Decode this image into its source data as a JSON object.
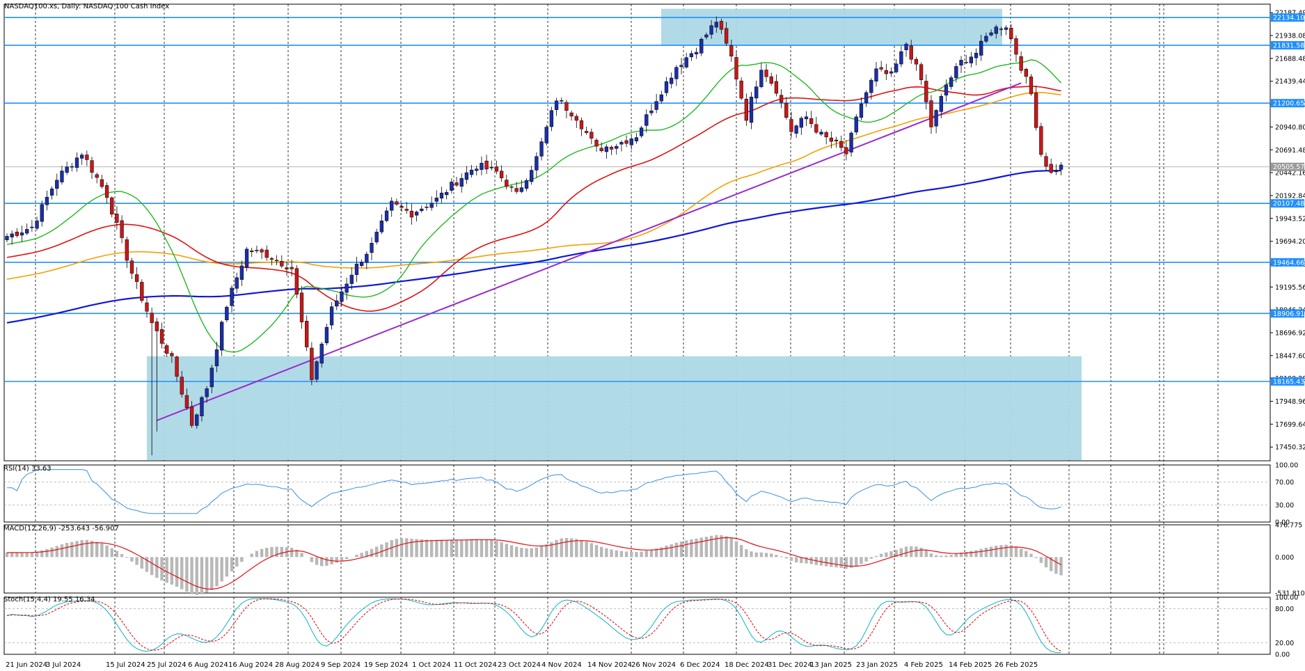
{
  "chart_data": {
    "type": "candlestick",
    "title": "NASDAQ100.xs, Daily:  NASDAQ 100 Cash Index",
    "y_ticks": [
      "22187.49",
      "21938.08",
      "21688.48",
      "21439.44",
      "21189.20",
      "20940.80",
      "20691.48",
      "20442.16",
      "20192.84",
      "19943.52",
      "19694.20",
      "19444.88",
      "19195.56",
      "18946.24",
      "18696.92",
      "18447.60",
      "18198.28",
      "17948.96",
      "17699.64",
      "17450.32"
    ],
    "ylim": [
      17300,
      22280
    ],
    "price_levels": [
      {
        "label": "22134.10",
        "value": 22134.1
      },
      {
        "label": "21831.58",
        "value": 21831.58
      },
      {
        "label": "21200.65",
        "value": 21200.65
      },
      {
        "label": "20107.48",
        "value": 20107.48
      },
      {
        "label": "19464.66",
        "value": 19464.66
      },
      {
        "label": "18906.91",
        "value": 18906.91
      },
      {
        "label": "18165.43",
        "value": 18165.43
      }
    ],
    "current_price": {
      "label": "20505.57",
      "value": 20505.57
    },
    "date_labels": [
      "21 Jun 2024",
      "3 Jul 2024",
      "15 Jul 2024",
      "25 Jul 2024",
      "6 Aug 2024",
      "16 Aug 2024",
      "28 Aug 2024",
      "9 Sep 2024",
      "19 Sep 2024",
      "1 Oct 2024",
      "11 Oct 2024",
      "23 Oct 2024",
      "4 Nov 2024",
      "14 Nov 2024",
      "26 Nov 2024",
      "6 Dec 2024",
      "18 Dec 2024",
      "31 Dec 2024",
      "13 Jan 2025",
      "23 Jan 2025",
      "4 Feb 2025",
      "14 Feb 2025",
      "26 Feb 2025"
    ],
    "colors": {
      "bull": "#1a2fa8",
      "bear": "#c81818",
      "sma20": "#22b822",
      "sma50": "#e01010",
      "sma100": "#f5a000",
      "sma200": "#1018d8",
      "trendline": "#9a2ad0",
      "zone": "#add8e6",
      "level": "#1f8fff",
      "rsi": "#3a8fe0",
      "macd_hist": "#b8b8b8",
      "macd_signal": "#e01010",
      "stoch_k": "#20b8c8",
      "stoch_d": "#e01010"
    },
    "rsi": {
      "label": "RSI(14) 33.63",
      "ticks": [
        "100.00",
        "70.00",
        "30.00",
        "0.00"
      ],
      "ylim": [
        0,
        100
      ]
    },
    "macd": {
      "label": "MACD(12,26,9) -253.643 -56.907",
      "ticks": [
        "476.775",
        "0.000",
        "-531.810"
      ],
      "ylim": [
        -531.81,
        476.775
      ]
    },
    "stoch": {
      "label": "Stoch(15,4,4) 19.55 16.34",
      "ticks": [
        "100.00",
        "80.00",
        "20.00",
        "0.00"
      ],
      "ylim": [
        0,
        100
      ]
    },
    "anchors": [
      [
        0,
        19750
      ],
      [
        5,
        19850
      ],
      [
        10,
        20380
      ],
      [
        15,
        20660
      ],
      [
        20,
        20200
      ],
      [
        25,
        19350
      ],
      [
        29,
        18800
      ],
      [
        33,
        18400
      ],
      [
        37,
        17700
      ],
      [
        40,
        18100
      ],
      [
        44,
        19000
      ],
      [
        48,
        19600
      ],
      [
        52,
        19550
      ],
      [
        57,
        19400
      ],
      [
        61,
        18200
      ],
      [
        65,
        18950
      ],
      [
        69,
        19350
      ],
      [
        73,
        19650
      ],
      [
        77,
        20100
      ],
      [
        81,
        20000
      ],
      [
        86,
        20150
      ],
      [
        90,
        20350
      ],
      [
        94,
        20520
      ],
      [
        98,
        20450
      ],
      [
        102,
        20200
      ],
      [
        106,
        20600
      ],
      [
        110,
        21250
      ],
      [
        114,
        21050
      ],
      [
        118,
        20700
      ],
      [
        122,
        20750
      ],
      [
        126,
        20850
      ],
      [
        130,
        21250
      ],
      [
        134,
        21600
      ],
      [
        138,
        21800
      ],
      [
        142,
        22100
      ],
      [
        145,
        21700
      ],
      [
        148,
        21050
      ],
      [
        151,
        21600
      ],
      [
        154,
        21350
      ],
      [
        157,
        20900
      ],
      [
        160,
        21050
      ],
      [
        163,
        20850
      ],
      [
        166,
        20750
      ],
      [
        168,
        20650
      ],
      [
        171,
        21200
      ],
      [
        174,
        21550
      ],
      [
        177,
        21500
      ],
      [
        180,
        21850
      ],
      [
        183,
        21450
      ],
      [
        185,
        20950
      ],
      [
        188,
        21400
      ],
      [
        191,
        21650
      ],
      [
        194,
        21750
      ],
      [
        197,
        22000
      ],
      [
        200,
        22050
      ],
      [
        202,
        21750
      ],
      [
        205,
        21300
      ],
      [
        207,
        20650
      ],
      [
        209,
        20430
      ],
      [
        210,
        20480
      ],
      [
        211,
        20505
      ]
    ]
  }
}
